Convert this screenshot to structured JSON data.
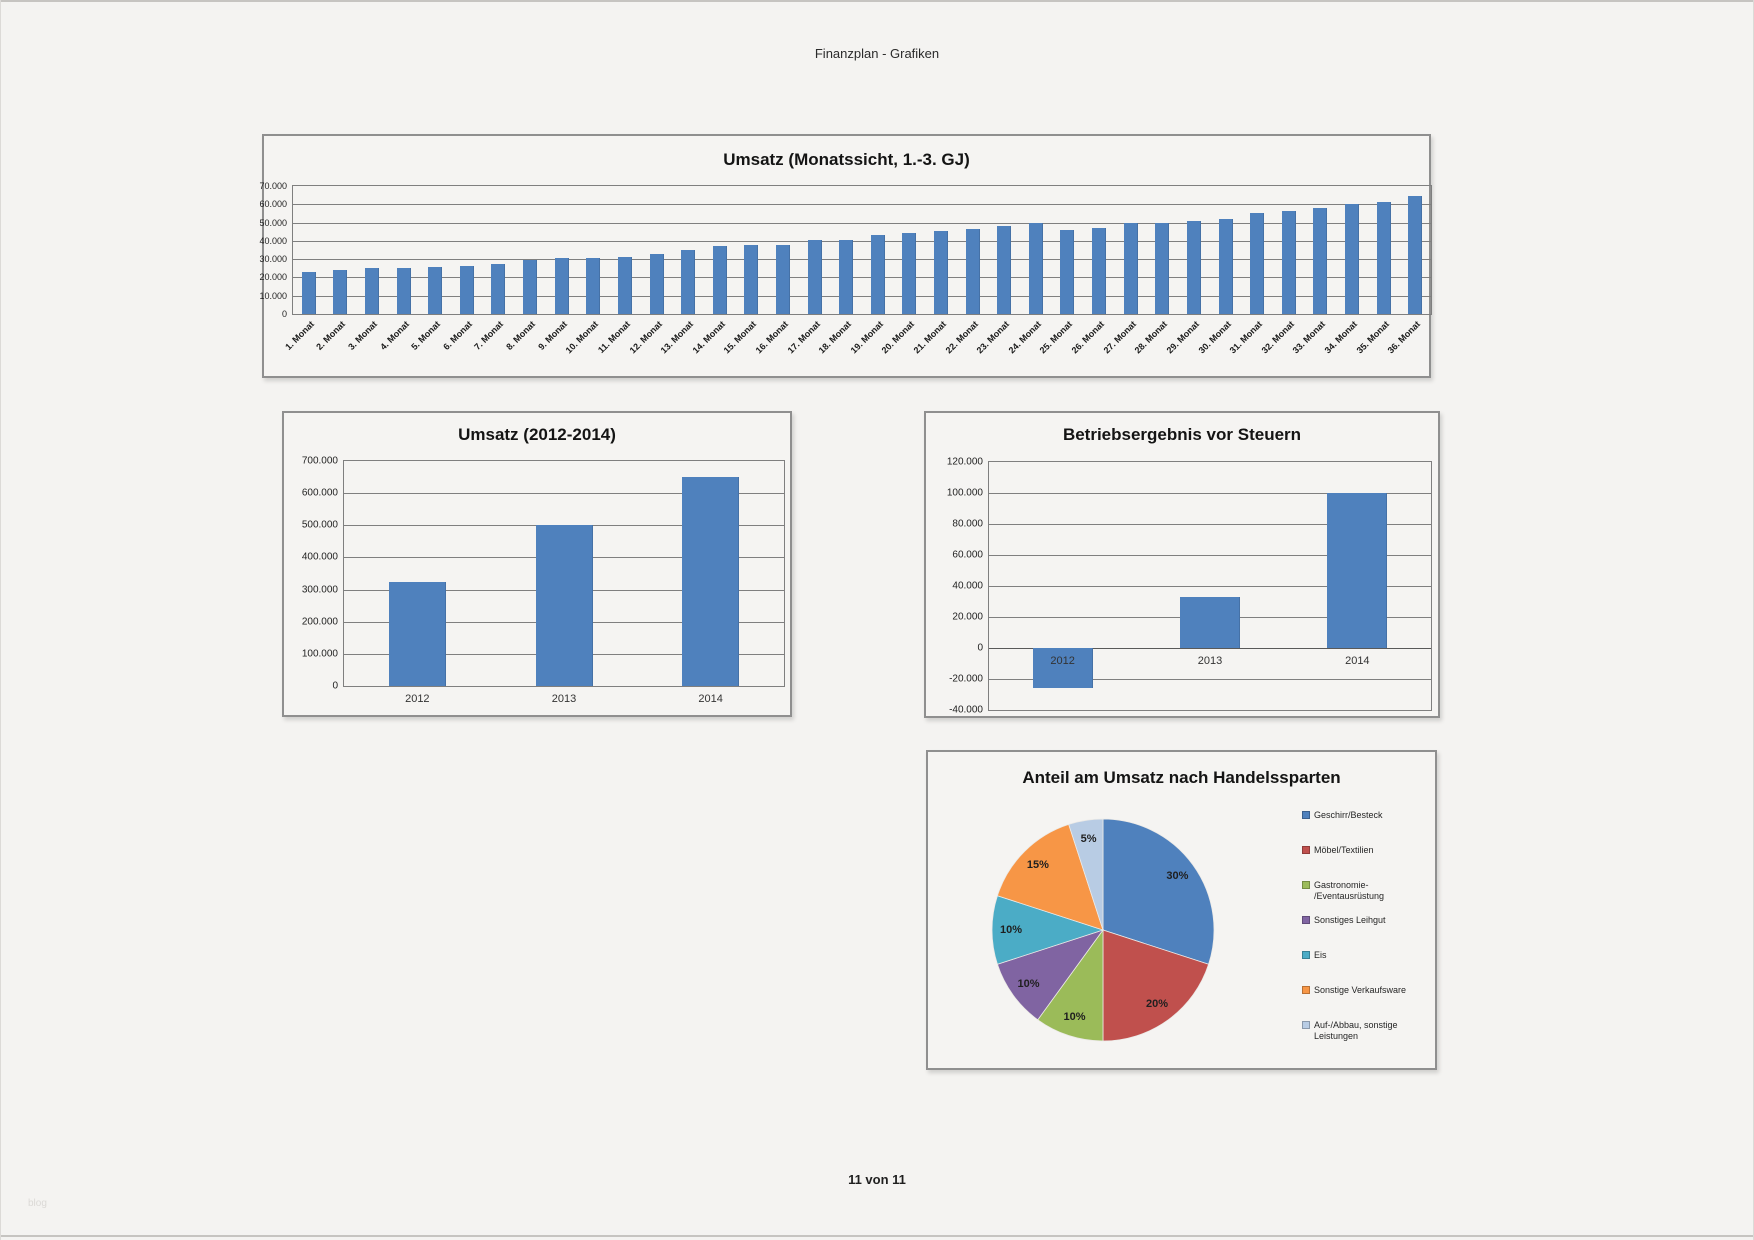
{
  "page": {
    "header": "Finanzplan - Grafiken",
    "footer": "11 von 11",
    "watermark": "blog",
    "background": "#f4f3f1",
    "accent_blue": "#4f81bd"
  },
  "chart_data": [
    {
      "type": "bar",
      "title": "Umsatz (Monatssicht, 1.-3. GJ)",
      "categories": [
        "1. Monat",
        "2. Monat",
        "3. Monat",
        "4. Monat",
        "5. Monat",
        "6. Monat",
        "7. Monat",
        "8. Monat",
        "9. Monat",
        "10. Monat",
        "11. Monat",
        "12. Monat",
        "13. Monat",
        "14. Monat",
        "15. Monat",
        "16. Monat",
        "17. Monat",
        "18. Monat",
        "19. Monat",
        "20. Monat",
        "21. Monat",
        "22. Monat",
        "23. Monat",
        "24. Monat",
        "25. Monat",
        "26. Monat",
        "27. Monat",
        "28. Monat",
        "29. Monat",
        "30. Monat",
        "31. Monat",
        "32. Monat",
        "33. Monat",
        "34. Monat",
        "35. Monat",
        "36. Monat"
      ],
      "values": [
        23000,
        24000,
        25000,
        25000,
        25500,
        26000,
        27500,
        29500,
        30500,
        30500,
        31000,
        33000,
        35000,
        37000,
        38000,
        38000,
        40500,
        40500,
        43000,
        44500,
        45500,
        46500,
        48000,
        50000,
        46000,
        47000,
        50000,
        50000,
        51000,
        52000,
        55500,
        56500,
        58000,
        60000,
        61500,
        64500
      ],
      "ylim": [
        0,
        70000
      ],
      "yticks": [
        "70.000",
        "60.000",
        "50.000",
        "40.000",
        "30.000",
        "20.000",
        "10.000",
        "0"
      ],
      "xlabel": "",
      "ylabel": "",
      "grid": true,
      "bar_color": "#4f81bd",
      "legend_position": "none"
    },
    {
      "type": "bar",
      "title": "Umsatz (2012-2014)",
      "categories": [
        "2012",
        "2013",
        "2014"
      ],
      "values": [
        325000,
        500000,
        650000
      ],
      "ylim": [
        0,
        700000
      ],
      "yticks": [
        "700.000",
        "600.000",
        "500.000",
        "400.000",
        "300.000",
        "200.000",
        "100.000",
        "0"
      ],
      "xlabel": "",
      "ylabel": "",
      "grid": true,
      "bar_color": "#4f81bd",
      "legend_position": "none"
    },
    {
      "type": "bar",
      "title": "Betriebsergebnis vor Steuern",
      "categories": [
        "2012",
        "2013",
        "2014"
      ],
      "values": [
        -26000,
        33000,
        100000
      ],
      "ylim": [
        -40000,
        120000
      ],
      "yticks": [
        "120.000",
        "100.000",
        "80.000",
        "60.000",
        "40.000",
        "20.000",
        "0",
        "-20.000",
        "-40.000"
      ],
      "xlabel": "",
      "ylabel": "",
      "grid": true,
      "bar_color": "#4f81bd",
      "legend_position": "none"
    },
    {
      "type": "pie",
      "title": "Anteil am Umsatz nach Handelssparten",
      "labels": [
        "Geschirr/Besteck",
        "Möbel/Textilien",
        "Gastronomie-\n/Eventausrüstung",
        "Sonstiges Leihgut",
        "Eis",
        "Sonstige Verkaufsware",
        "Auf-/Abbau, sonstige\nLeistungen"
      ],
      "values": [
        30,
        20,
        10,
        10,
        10,
        15,
        5
      ],
      "slice_labels": [
        "30%",
        "20%",
        "10%",
        "10%",
        "10%",
        "15%",
        "5%"
      ],
      "colors": [
        "#4f81bd",
        "#c0504d",
        "#9bbb59",
        "#8064a2",
        "#4bacc6",
        "#f79646",
        "#b8cce4"
      ],
      "legend_position": "right",
      "start_angle_deg": 0,
      "direction": "clockwise"
    }
  ]
}
